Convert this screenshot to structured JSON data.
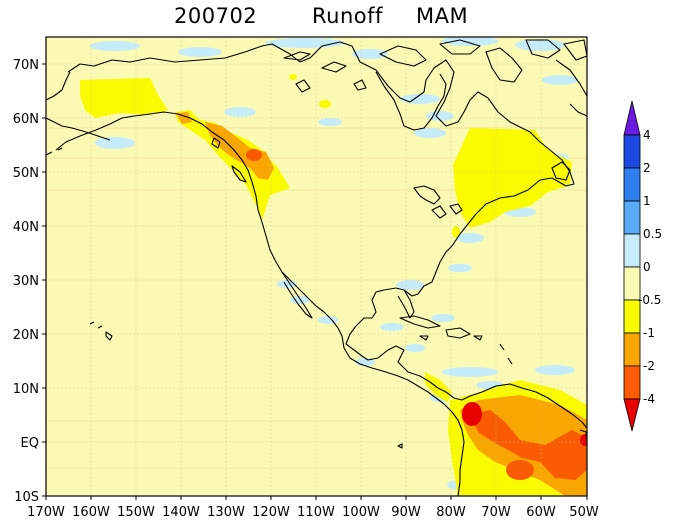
{
  "title": {
    "date": "200702",
    "variable": "Runoff",
    "season": "MAM"
  },
  "map": {
    "lon_range": [
      -170,
      -50
    ],
    "lat_range": [
      -10,
      75
    ],
    "x_tick_labels": [
      "170W",
      "160W",
      "150W",
      "140W",
      "130W",
      "120W",
      "110W",
      "100W",
      "90W",
      "80W",
      "70W",
      "60W",
      "50W"
    ],
    "y_tick_labels": [
      "70N",
      "60N",
      "50N",
      "40N",
      "30N",
      "20N",
      "10N",
      "EQ",
      "10S"
    ],
    "background_color": "#fafab4"
  },
  "colorbar": {
    "labels": [
      "4",
      "2",
      "1",
      "0.5",
      "0",
      "-0.5",
      "-1",
      "-2",
      "-4"
    ],
    "colors": [
      "#6a1ae0",
      "#1a48e0",
      "#2f7ef0",
      "#5aaaf5",
      "#c6ecfa",
      "#fafab4",
      "#fafa00",
      "#faa600",
      "#fa5a00",
      "#e80000"
    ]
  }
}
